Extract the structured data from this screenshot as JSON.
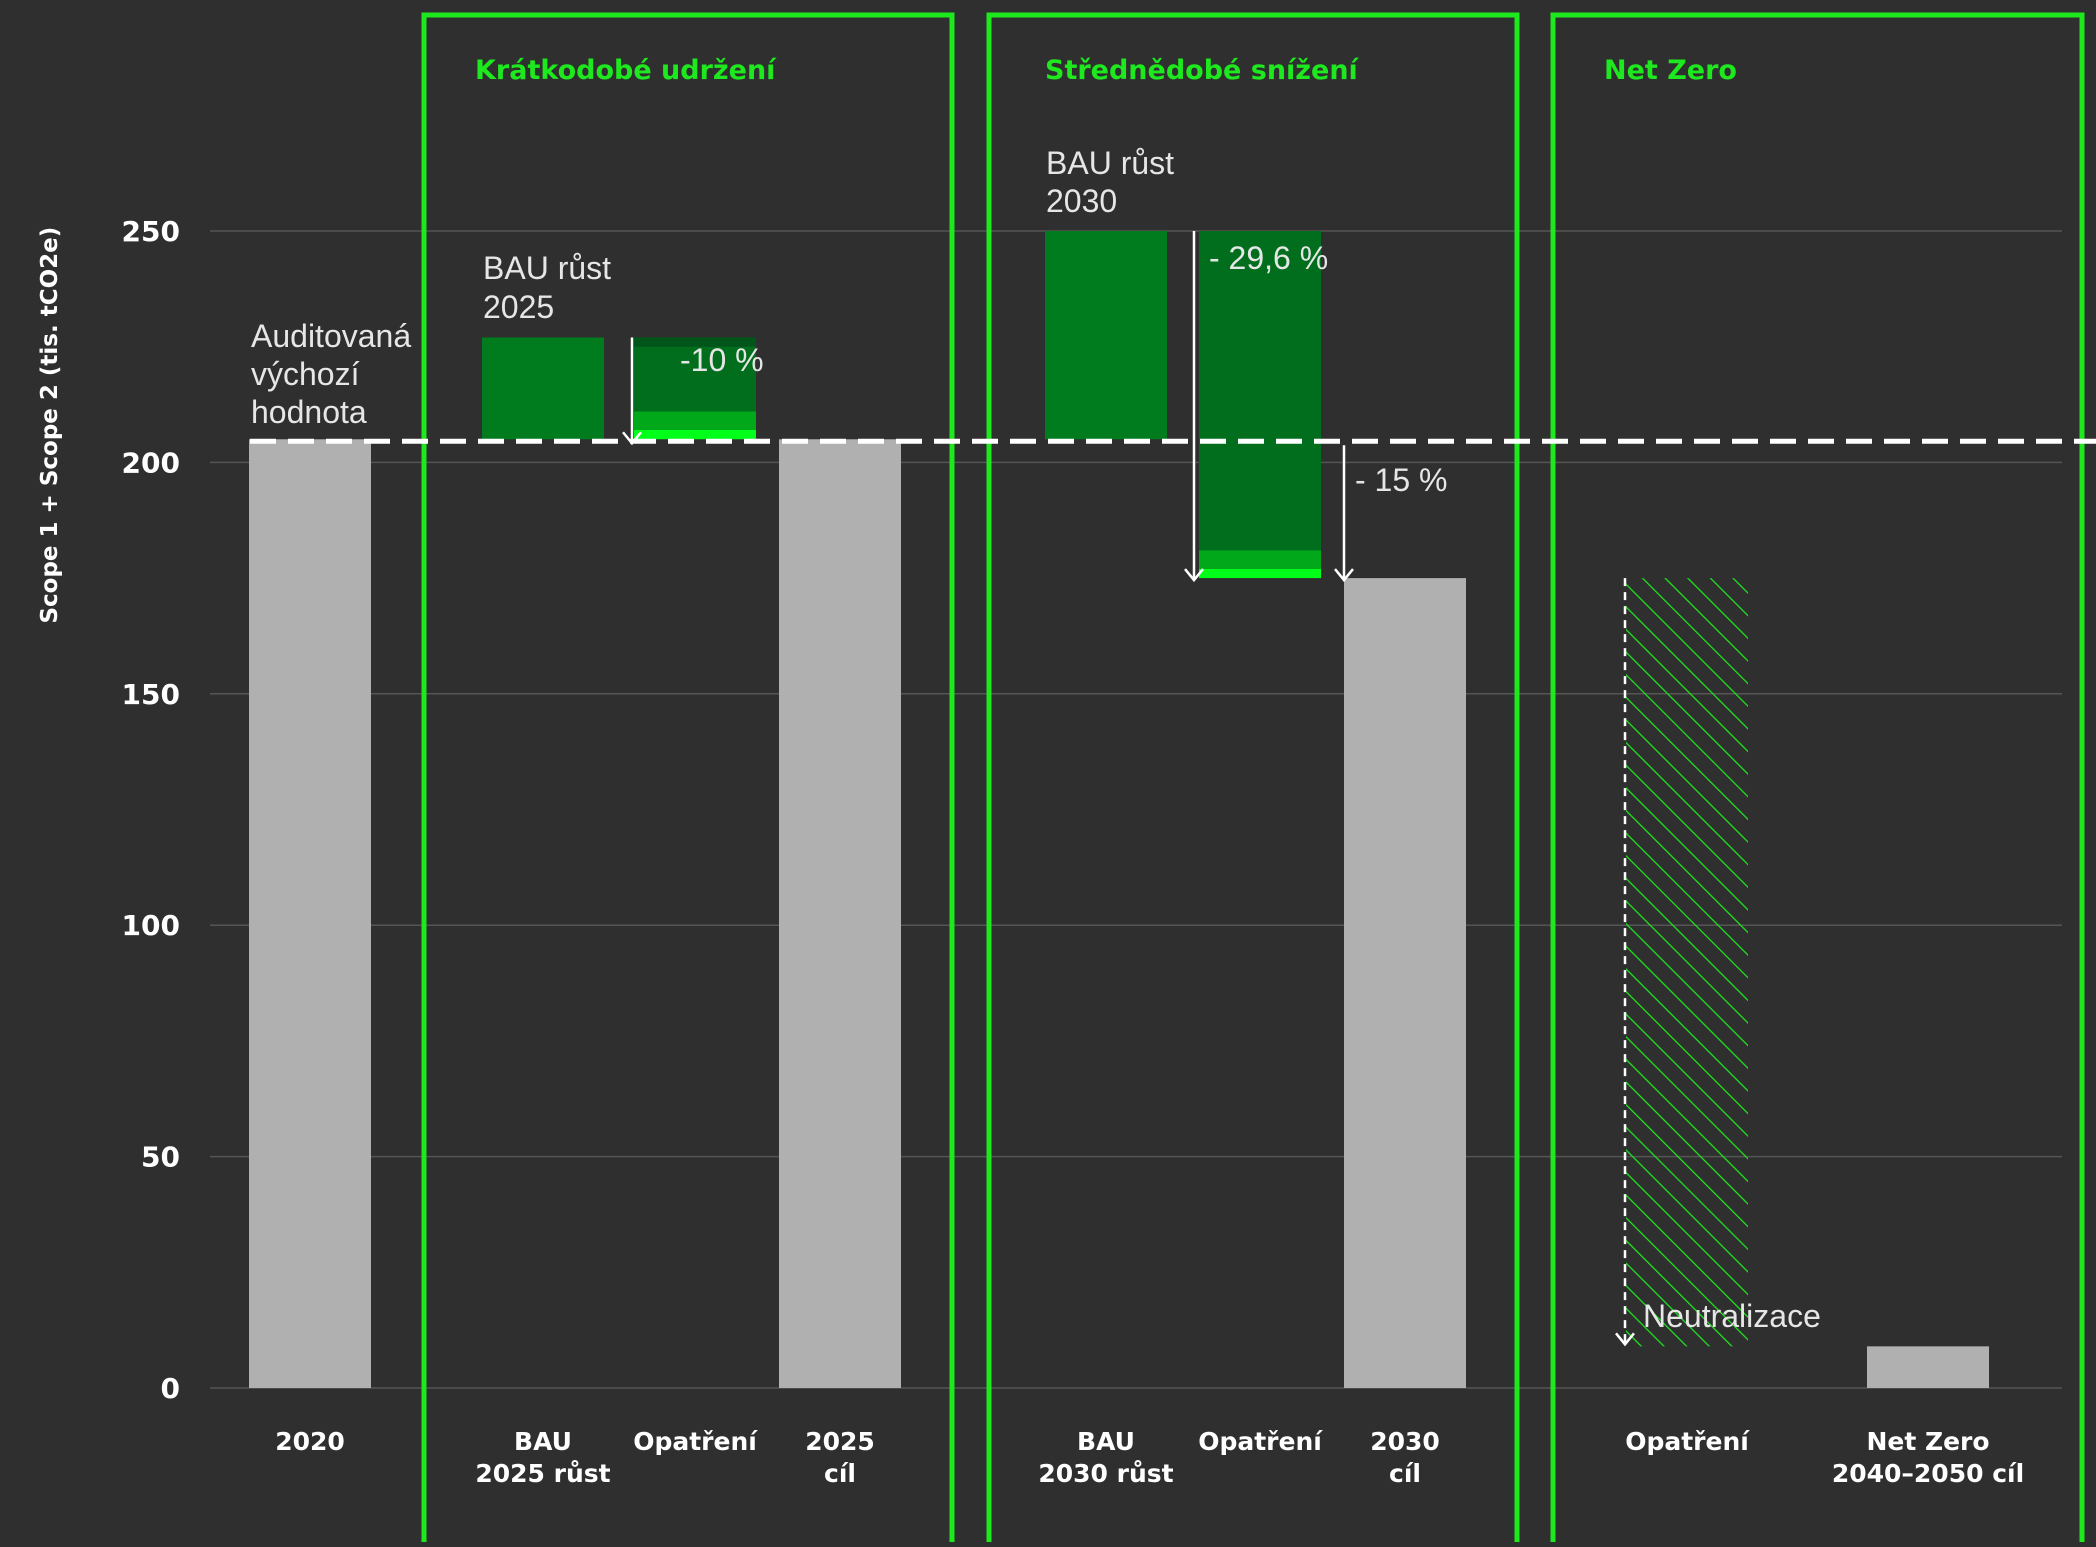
{
  "colors": {
    "background": "#2f2f2f",
    "gray_bar": "#b0b0b0",
    "bau_green": "#007b1e",
    "reduction_green": "#006e1c",
    "mid_green": "#00a81a",
    "bright_green": "#00ff19",
    "panel_border": "#1ee81e",
    "grid": "#555555",
    "baseline": "#ffffff"
  },
  "chart_data": {
    "type": "bar",
    "ylabel": "Scope 1 + Scope 2 (tis. tCO2e)",
    "ylim": [
      0,
      250
    ],
    "yticks": [
      0,
      50,
      100,
      150,
      200,
      250
    ],
    "baseline": 205,
    "categories": [
      "2020",
      "BAU\n2025 růst",
      "Opatření",
      "2025\ncíl",
      "BAU\n2030 růst",
      "Opatření",
      "2030\ncíl",
      "Opatření",
      "Net Zero\n2040–2050 cíl"
    ],
    "bars": [
      {
        "category": "2020",
        "type": "total",
        "from": 0,
        "to": 205
      },
      {
        "category": "BAU 2025 růst",
        "type": "increase",
        "from": 205,
        "to": 227
      },
      {
        "category": "Opatření",
        "type": "decrease",
        "segments": [
          {
            "from": 225,
            "to": 227,
            "shade": "reduction_green"
          },
          {
            "from": 211,
            "to": 225,
            "shade": "reduction_green"
          },
          {
            "from": 207,
            "to": 211,
            "shade": "mid_green"
          },
          {
            "from": 205,
            "to": 207,
            "shade": "bright_green"
          }
        ]
      },
      {
        "category": "2025 cíl",
        "type": "total",
        "from": 0,
        "to": 205
      },
      {
        "category": "BAU 2030 růst",
        "type": "increase",
        "from": 205,
        "to": 250
      },
      {
        "category": "Opatření",
        "type": "decrease",
        "segments": [
          {
            "from": 181,
            "to": 250,
            "shade": "reduction_green"
          },
          {
            "from": 177,
            "to": 181,
            "shade": "mid_green"
          },
          {
            "from": 175,
            "to": 177,
            "shade": "bright_green"
          }
        ]
      },
      {
        "category": "2030 cíl",
        "type": "total",
        "from": 0,
        "to": 175
      },
      {
        "category": "Opatření",
        "type": "neutralization",
        "from": 9,
        "to": 175
      },
      {
        "category": "Net Zero 2040–2050 cíl",
        "type": "total",
        "from": 0,
        "to": 9
      }
    ],
    "panels": [
      {
        "title": "Krátkodobé udržení"
      },
      {
        "title": "Střednědobé snížení"
      },
      {
        "title": "Net Zero"
      }
    ],
    "annotations": [
      {
        "lines": [
          "Auditovaná",
          "výchozí",
          "hodnota"
        ]
      },
      {
        "lines": [
          "BAU růst",
          "2025"
        ]
      },
      {
        "lines": [
          "-10 %"
        ]
      },
      {
        "lines": [
          "BAU růst",
          "2030"
        ]
      },
      {
        "lines": [
          "- 29,6 %"
        ]
      },
      {
        "lines": [
          "- 15 %"
        ]
      },
      {
        "lines": [
          "Neutralizace"
        ]
      }
    ]
  }
}
